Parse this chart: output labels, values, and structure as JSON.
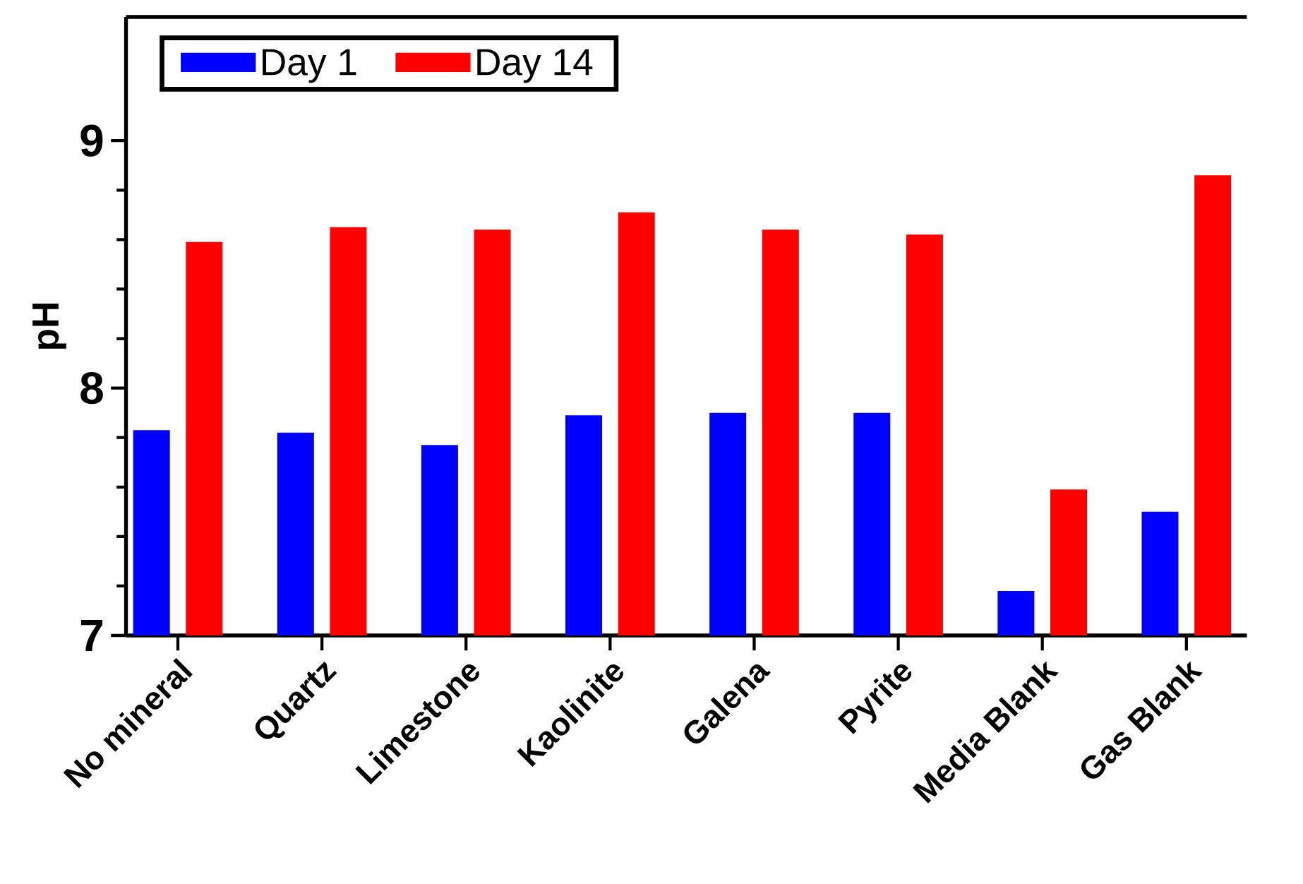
{
  "chart_data": {
    "type": "bar",
    "ylabel": "pH",
    "categories": [
      "No mineral",
      "Quartz",
      "Limestone",
      "Kaolinite",
      "Galena",
      "Pyrite",
      "Media Blank",
      "Gas Blank"
    ],
    "series": [
      {
        "name": "Day 1",
        "color": "#0000ff",
        "values": [
          7.83,
          7.82,
          7.77,
          7.89,
          7.9,
          7.9,
          7.18,
          7.5
        ]
      },
      {
        "name": "Day 14",
        "color": "#ff0000",
        "values": [
          8.59,
          8.65,
          8.64,
          8.71,
          8.64,
          8.62,
          7.59,
          8.86
        ]
      }
    ],
    "ylim": [
      7,
      9.5
    ],
    "yticks": [
      7,
      8,
      9
    ],
    "grid": false,
    "legend": "top left"
  }
}
